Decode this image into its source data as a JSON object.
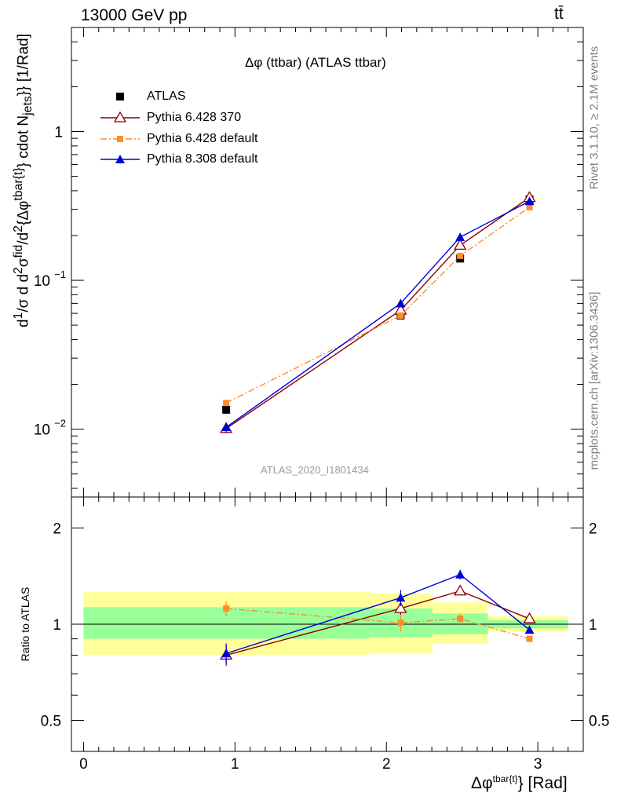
{
  "header": {
    "left": "13000 GeV pp",
    "right": "tt̄"
  },
  "plot_title": "Δφ (ttbar) (ATLAS ttbar)",
  "watermark": "ATLAS_2020_I1801434",
  "side_text": {
    "rivet": "Rivet 3.1.10, ≥ 2.1M events",
    "mcplots": "mcplots.cern.ch [arXiv:1306.3436]"
  },
  "colors": {
    "atlas": "#000000",
    "py6_370": "#8b0000",
    "py6_default": "#ff8c2a",
    "py8_default": "#0000dd",
    "band_outer": "#ffff99",
    "band_inner": "#99ff99"
  },
  "chart_data": [
    {
      "type": "line",
      "panel": "main",
      "title": "Δφ (ttbar) (ATLAS ttbar)",
      "xlabel": "Δφ^{tbar{t}} [Rad]",
      "ylabel": "d¹/σ d d²σ^fid/d²{Δφ^tbar{t}} cdot N_jets}} [1/Rad]",
      "yscale": "log",
      "xlim": [
        -0.08,
        3.3
      ],
      "ylim": [
        0.0035,
        5.0
      ],
      "y_ticks": [
        "10^-2",
        "10^-1",
        "1"
      ],
      "legend_position": "top-left",
      "series": [
        {
          "name": "ATLAS",
          "marker": "square-filled",
          "x": [
            0.942,
            2.094,
            2.487,
            2.945
          ],
          "y": [
            0.0135,
            0.058,
            0.14,
            0.35
          ],
          "yerr": [
            0.0008,
            0.002,
            0.005,
            0.01
          ]
        },
        {
          "name": "Pythia 6.428 370",
          "marker": "triangle-open",
          "line": "solid",
          "x": [
            0.942,
            2.094,
            2.487,
            2.945
          ],
          "y": [
            0.0101,
            0.063,
            0.172,
            0.36
          ],
          "yerr": [
            0.0007,
            0.003,
            0.006,
            0.01
          ]
        },
        {
          "name": "Pythia 6.428 default",
          "marker": "square-small",
          "line": "dash-dot",
          "x": [
            0.942,
            2.094,
            2.487,
            2.945
          ],
          "y": [
            0.015,
            0.058,
            0.146,
            0.31
          ],
          "yerr": [
            0.0007,
            0.003,
            0.006,
            0.01
          ]
        },
        {
          "name": "Pythia 8.308 default",
          "marker": "triangle-filled",
          "line": "solid",
          "x": [
            0.942,
            2.094,
            2.487,
            2.945
          ],
          "y": [
            0.0103,
            0.07,
            0.195,
            0.34
          ],
          "yerr": [
            0.0008,
            0.004,
            0.007,
            0.01
          ]
        }
      ]
    },
    {
      "type": "line",
      "panel": "ratio",
      "ylabel": "Ratio to ATLAS",
      "xlabel": "Δφ^{tbar{t}} [Rad]",
      "yscale": "log",
      "xlim": [
        -0.08,
        3.3
      ],
      "ylim": [
        0.4,
        2.5
      ],
      "x_ticks": [
        "0",
        "1",
        "2",
        "3"
      ],
      "y_ticks": [
        "0.5",
        "1",
        "2"
      ],
      "reference_line": 1,
      "bands": [
        {
          "x0": 0.0,
          "x1": 1.885,
          "outer": [
            0.8,
            1.26
          ],
          "inner": [
            0.9,
            1.13
          ]
        },
        {
          "x0": 1.885,
          "x1": 2.304,
          "outer": [
            0.81,
            1.25
          ],
          "inner": [
            0.91,
            1.12
          ]
        },
        {
          "x0": 2.304,
          "x1": 2.67,
          "outer": [
            0.87,
            1.17
          ],
          "inner": [
            0.93,
            1.08
          ]
        },
        {
          "x0": 2.67,
          "x1": 3.2,
          "outer": [
            0.95,
            1.06
          ],
          "inner": [
            0.97,
            1.03
          ]
        }
      ],
      "series": [
        {
          "name": "Pythia 6.428 370",
          "x": [
            0.942,
            2.094,
            2.487,
            2.945
          ],
          "y": [
            0.8,
            1.12,
            1.27,
            1.04
          ],
          "yerr": [
            0.06,
            0.05,
            0.04,
            0.02
          ]
        },
        {
          "name": "Pythia 6.428 default",
          "x": [
            0.942,
            2.094,
            2.487,
            2.945
          ],
          "y": [
            1.12,
            1.01,
            1.04,
            0.9
          ],
          "yerr": [
            0.06,
            0.06,
            0.04,
            0.02
          ]
        },
        {
          "name": "Pythia 8.308 default",
          "x": [
            0.942,
            2.094,
            2.487,
            2.945
          ],
          "y": [
            0.81,
            1.21,
            1.43,
            0.96
          ],
          "yerr": [
            0.06,
            0.07,
            0.05,
            0.02
          ]
        }
      ]
    }
  ]
}
